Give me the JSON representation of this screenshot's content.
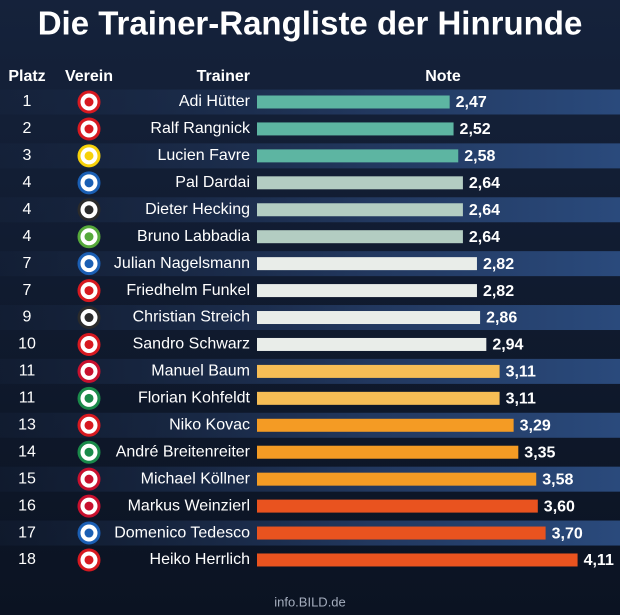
{
  "chart_data": {
    "type": "bar",
    "title": "Die Trainer-Rangliste der Hinrunde",
    "column_headers": [
      "Platz",
      "Verein",
      "Trainer",
      "Note"
    ],
    "ranks": [
      1,
      2,
      3,
      4,
      4,
      4,
      7,
      7,
      9,
      10,
      11,
      11,
      13,
      14,
      15,
      16,
      17,
      18
    ],
    "categories": [
      "Adi Hütter",
      "Ralf Rangnick",
      "Lucien Favre",
      "Pal Dardai",
      "Dieter Hecking",
      "Bruno Labbadia",
      "Julian Nagelsmann",
      "Friedhelm Funkel",
      "Christian Streich",
      "Sandro Schwarz",
      "Manuel Baum",
      "Florian Kohfeldt",
      "Niko Kovac",
      "André Breitenreiter",
      "Michael Köllner",
      "Markus Weinzierl",
      "Domenico Tedesco",
      "Heiko Herrlich"
    ],
    "values": [
      2.47,
      2.52,
      2.58,
      2.64,
      2.64,
      2.64,
      2.82,
      2.82,
      2.86,
      2.94,
      3.11,
      3.11,
      3.29,
      3.35,
      3.58,
      3.6,
      3.7,
      4.11
    ],
    "value_labels": [
      "2,47",
      "2,52",
      "2,58",
      "2,64",
      "2,64",
      "2,64",
      "2,82",
      "2,82",
      "2,86",
      "2,94",
      "3,11",
      "3,11",
      "3,29",
      "3,35",
      "3,58",
      "3,60",
      "3,70",
      "4,11"
    ],
    "colors": [
      "#5db5a2",
      "#5db5a2",
      "#5db5a2",
      "#b3cdc2",
      "#b3cdc2",
      "#b3cdc2",
      "#e9ede9",
      "#e9ede9",
      "#e9ede9",
      "#e9ede9",
      "#f6bd55",
      "#f6bd55",
      "#f49b24",
      "#f49b24",
      "#f49b24",
      "#e9531f",
      "#e9531f",
      "#e9531f"
    ],
    "source": "info.BILD.de"
  }
}
